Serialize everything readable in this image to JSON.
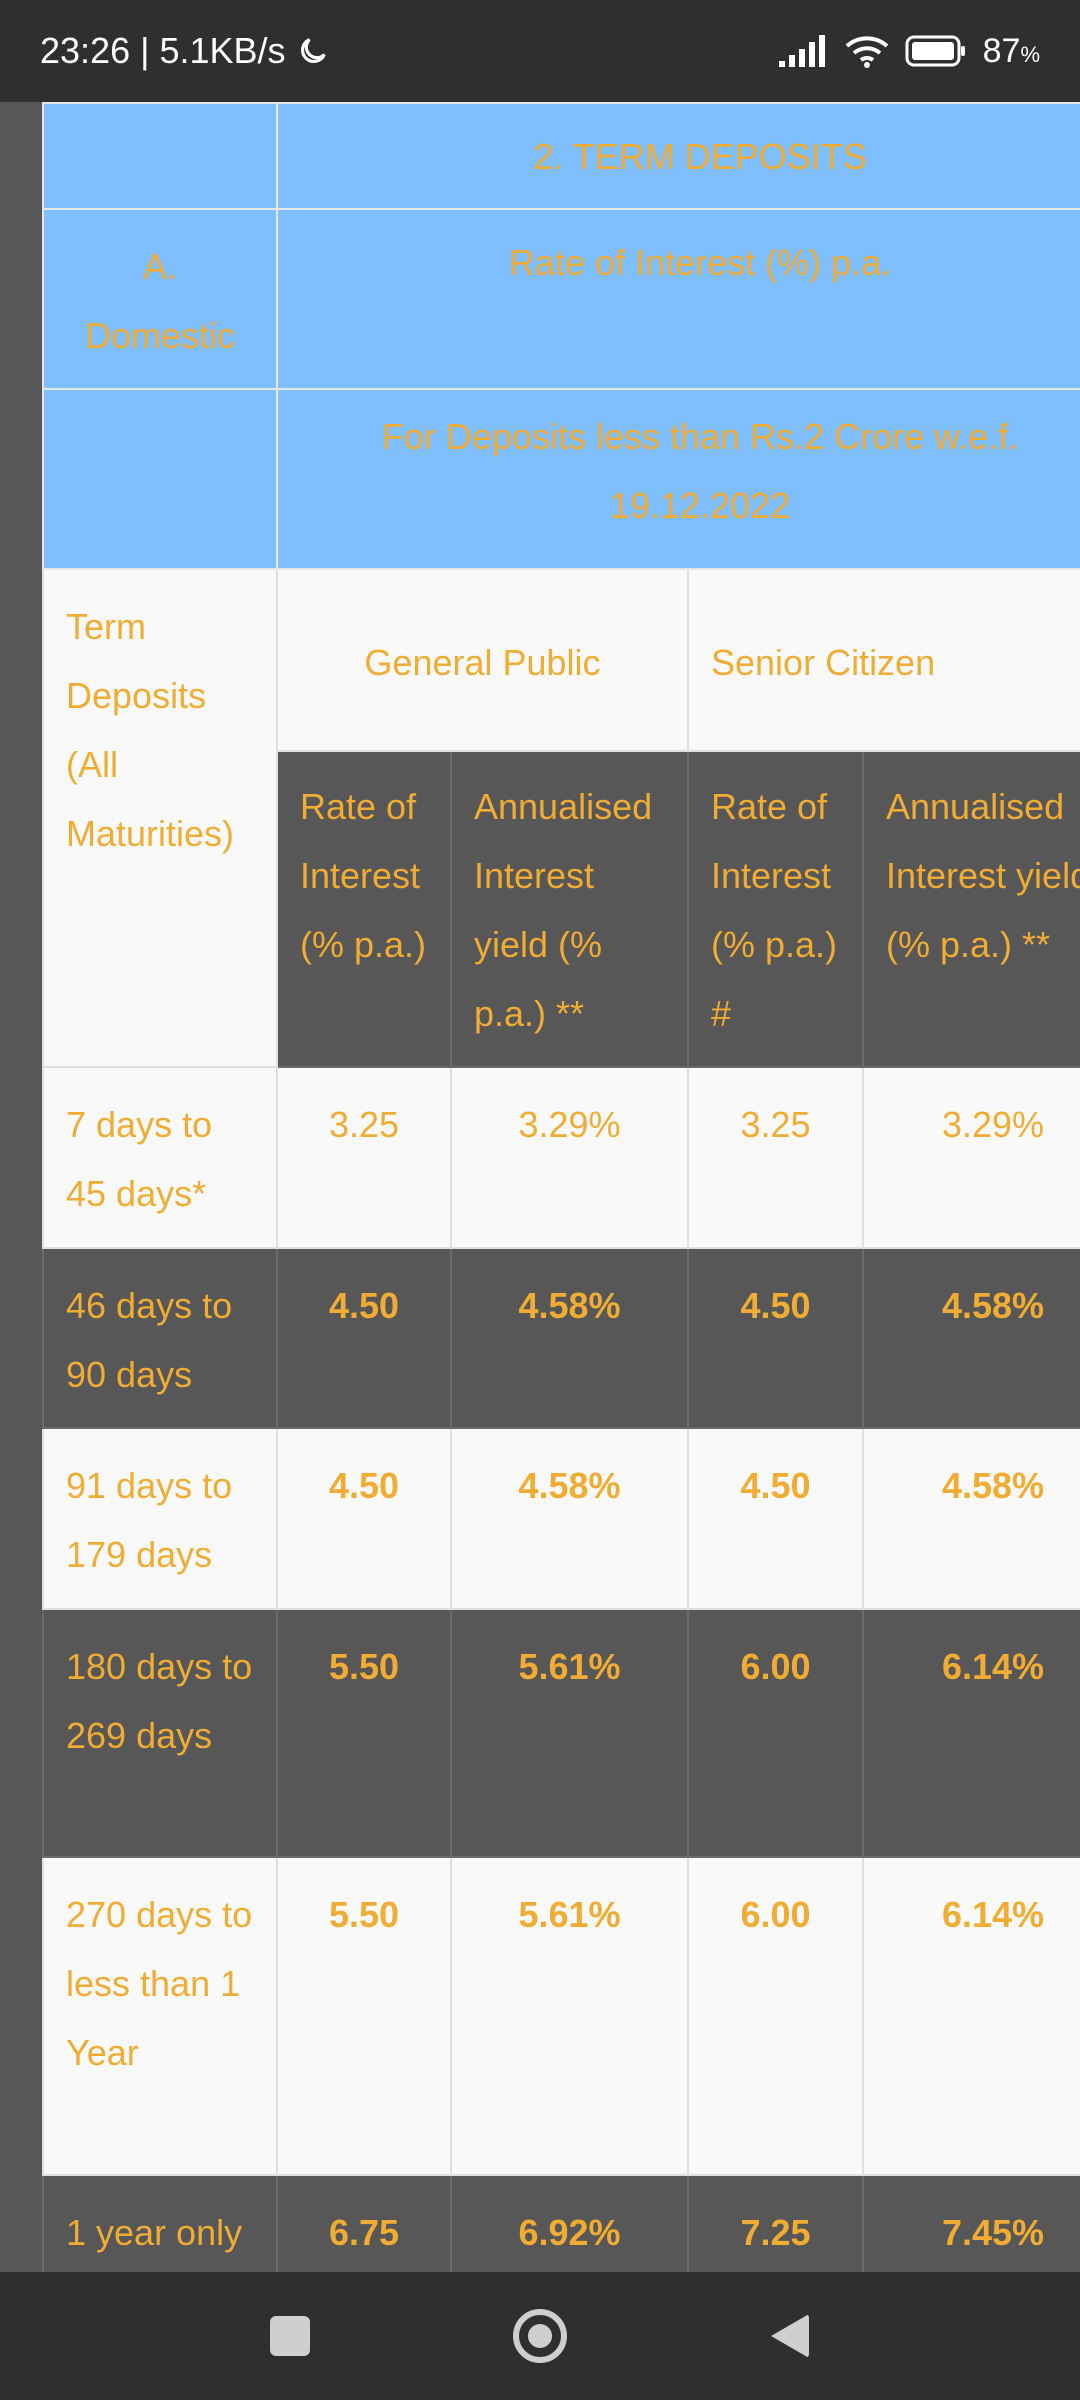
{
  "status_bar": {
    "time_speed": "23:26 | 5.1KB/s",
    "battery": "87",
    "battery_unit": "%"
  },
  "table": {
    "title": "2. TERM DEPOSITS",
    "section": "A. Domestic",
    "rate_header": "Rate of Interest (%) p.a.",
    "deposit_note": "For Deposits less than Rs.2 Crore w.e.f. 19.12.2022",
    "term_header": "Term Deposits (All Maturities)",
    "general_public": "General Public",
    "senior_citizen": "Senior Citizen",
    "col_rate_gp": "Rate of Interest (% p.a.)",
    "col_yield_gp": "Annualised Interest yield (% p.a.) **",
    "col_rate_sc": "Rate of Interest (% p.a.) #",
    "col_yield_sc": "Annualised Interest yield (% p.a.) **",
    "rows": [
      {
        "term": "7 days to 45 days*",
        "gp_rate": "3.25",
        "gp_yield": "3.29%",
        "sc_rate": "3.25",
        "sc_yield": "3.29%"
      },
      {
        "term": "46 days to 90 days",
        "gp_rate": "4.50",
        "gp_yield": "4.58%",
        "sc_rate": "4.50",
        "sc_yield": "4.58%"
      },
      {
        "term": "91 days to 179 days",
        "gp_rate": "4.50",
        "gp_yield": "4.58%",
        "sc_rate": "4.50",
        "sc_yield": "4.58%"
      },
      {
        "term": "180 days to 269 days",
        "gp_rate": "5.50",
        "gp_yield": "5.61%",
        "sc_rate": "6.00",
        "sc_yield": "6.14%"
      },
      {
        "term": "270 days to less than 1 Year",
        "gp_rate": "5.50",
        "gp_yield": "5.61%",
        "sc_rate": "6.00",
        "sc_yield": "6.14%"
      },
      {
        "term": "1 year only",
        "gp_rate": "6.75",
        "gp_yield": "6.92%",
        "sc_rate": "7.25",
        "sc_yield": "7.45%"
      }
    ]
  },
  "nav": {
    "icons": [
      "recents-square-icon",
      "home-circle-icon",
      "back-triangle-icon"
    ]
  }
}
